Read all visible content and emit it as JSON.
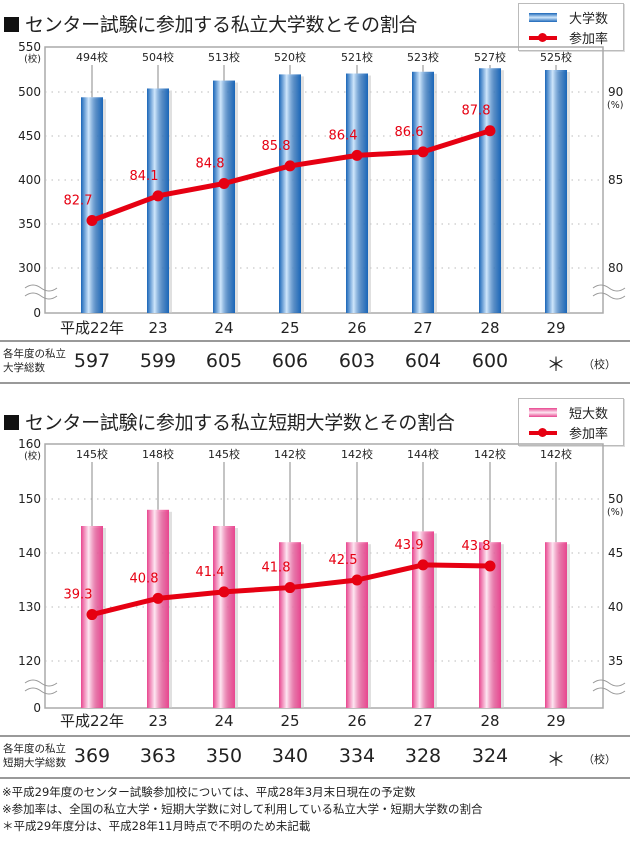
{
  "chart_data": [
    {
      "type": "bar+line",
      "title": "センター試験に参加する私立大学数とその割合",
      "legend": {
        "bar": "大学数",
        "line": "参加率",
        "placement": "top-right"
      },
      "categories": [
        "平成22年",
        "23",
        "24",
        "25",
        "26",
        "27",
        "28",
        "29"
      ],
      "series": [
        {
          "name": "大学数",
          "kind": "bar",
          "axis": "left",
          "values": [
            494,
            504,
            513,
            520,
            521,
            523,
            527,
            525
          ],
          "labels": [
            "494校",
            "504校",
            "513校",
            "520校",
            "521校",
            "523校",
            "527校",
            "525校"
          ]
        },
        {
          "name": "参加率",
          "kind": "line",
          "axis": "right",
          "values": [
            82.7,
            84.1,
            84.8,
            85.8,
            86.4,
            86.6,
            87.8,
            null
          ],
          "labels": [
            "82.7",
            "84.1",
            "84.8",
            "85.8",
            "86.4",
            "86.6",
            "87.8",
            ""
          ]
        }
      ],
      "left_axis": {
        "unit": "(校)",
        "ticks": [
          550,
          500,
          450,
          400,
          350,
          300,
          0
        ],
        "ylim": [
          300,
          550
        ],
        "break": true
      },
      "right_axis": {
        "unit": "(%)",
        "ticks": [
          90,
          85,
          80
        ],
        "ylim": [
          77.5,
          91.25
        ],
        "break": true
      },
      "grid": true,
      "table": {
        "label": [
          "各年度の私立",
          "大学総数"
        ],
        "values": [
          "597",
          "599",
          "605",
          "606",
          "603",
          "604",
          "600",
          "＊"
        ],
        "unit": "（校）"
      }
    },
    {
      "type": "bar+line",
      "title": "センター試験に参加する私立短期大学数とその割合",
      "legend": {
        "bar": "短大数",
        "line": "参加率",
        "placement": "top-right"
      },
      "categories": [
        "平成22年",
        "23",
        "24",
        "25",
        "26",
        "27",
        "28",
        "29"
      ],
      "series": [
        {
          "name": "短大数",
          "kind": "bar",
          "axis": "left",
          "values": [
            145,
            148,
            145,
            142,
            142,
            144,
            142,
            142
          ],
          "labels": [
            "145校",
            "148校",
            "145校",
            "142校",
            "142校",
            "144校",
            "142校",
            "142校"
          ]
        },
        {
          "name": "参加率",
          "kind": "line",
          "axis": "right",
          "values": [
            39.3,
            40.8,
            41.4,
            41.8,
            42.5,
            43.9,
            43.8,
            null
          ],
          "labels": [
            "39.3",
            "40.8",
            "41.4",
            "41.8",
            "42.5",
            "43.9",
            "43.8",
            ""
          ]
        }
      ],
      "left_axis": {
        "unit": "(校)",
        "ticks": [
          160,
          150,
          140,
          130,
          120,
          0
        ],
        "ylim": [
          115,
          160
        ],
        "break": true
      },
      "right_axis": {
        "unit": "(%)",
        "ticks": [
          50,
          45,
          40,
          35
        ],
        "ylim": [
          32.5,
          55
        ],
        "break": true
      },
      "grid": true,
      "table": {
        "label": [
          "各年度の私立",
          "短期大学総数"
        ],
        "values": [
          "369",
          "363",
          "350",
          "340",
          "334",
          "328",
          "324",
          "＊"
        ],
        "unit": "（校）"
      }
    }
  ],
  "notes": [
    "※平成29年度のセンター試験参加校については、平成28年3月末日現在の予定数",
    "※参加率は、全国の私立大学・短期大学数に対して利用している私立大学・短期大学数の割合",
    "＊平成29年度分は、平成28年11月時点で不明のため未記載"
  ],
  "colors": {
    "bar1_dark": "#1a66b8",
    "bar1_light": "#cfe6fb",
    "bar2_dark": "#e8468f",
    "bar2_light": "#fde6f1",
    "line": "#e60012",
    "grid": "#bbbbbb",
    "frame": "#aaaaaa"
  }
}
